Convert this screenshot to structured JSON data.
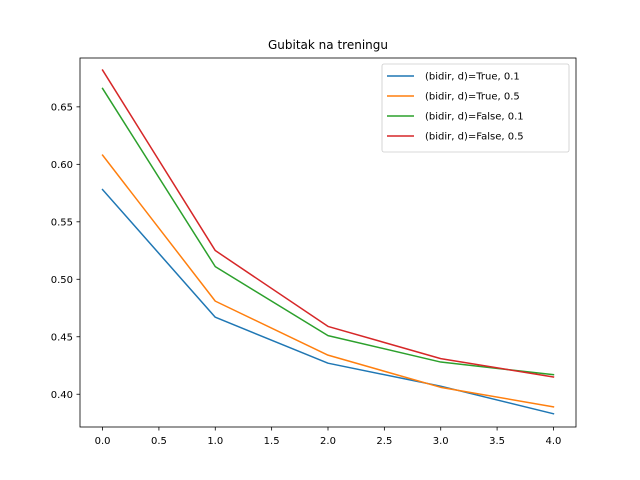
{
  "chart_data": {
    "type": "line",
    "title": "Gubitak na treningu",
    "xlabel": "",
    "ylabel": "",
    "x": [
      0,
      1,
      2,
      3,
      4
    ],
    "xlim": [
      -0.2,
      4.2
    ],
    "ylim": [
      0.3715,
      0.6925
    ],
    "xticks": [
      "0.0",
      "0.5",
      "1.0",
      "1.5",
      "2.0",
      "2.5",
      "3.0",
      "3.5",
      "4.0"
    ],
    "yticks": [
      "0.40",
      "0.45",
      "0.50",
      "0.55",
      "0.60",
      "0.65"
    ],
    "grid": false,
    "legend_position": "top-right",
    "series": [
      {
        "name": "(bidir, d)=True, 0.1",
        "color": "#1f77b4",
        "values": [
          0.578,
          0.467,
          0.427,
          0.407,
          0.383
        ]
      },
      {
        "name": "(bidir, d)=True, 0.5",
        "color": "#ff7f0e",
        "values": [
          0.608,
          0.481,
          0.434,
          0.406,
          0.389
        ]
      },
      {
        "name": "(bidir, d)=False, 0.1",
        "color": "#2ca02c",
        "values": [
          0.666,
          0.511,
          0.451,
          0.428,
          0.417
        ]
      },
      {
        "name": "(bidir, d)=False, 0.5",
        "color": "#d62728",
        "values": [
          0.682,
          0.525,
          0.459,
          0.431,
          0.415
        ]
      }
    ]
  }
}
